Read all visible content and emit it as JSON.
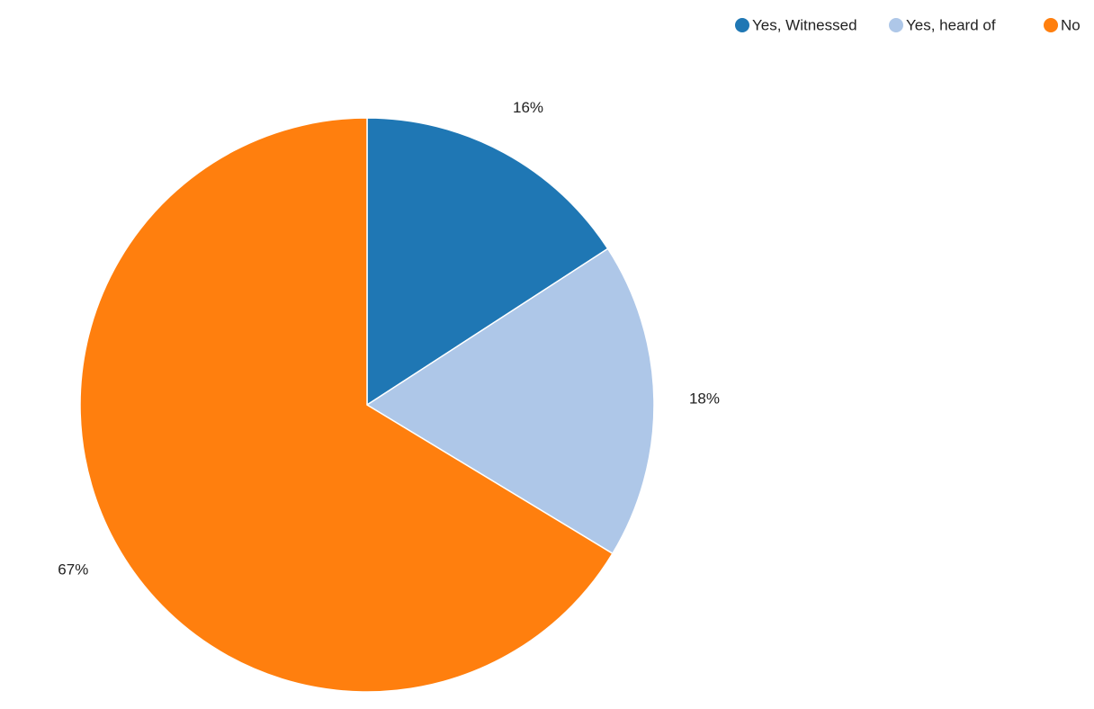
{
  "chart_data": {
    "type": "pie",
    "categories": [
      "Yes, Witnessed",
      "Yes, heard of",
      "No"
    ],
    "values": [
      16,
      18,
      67
    ],
    "value_labels": [
      "16%",
      "18%",
      "67%"
    ],
    "colors": [
      "#1f77b4",
      "#aec7e8",
      "#ff7f0e"
    ],
    "legend": "top-right"
  }
}
